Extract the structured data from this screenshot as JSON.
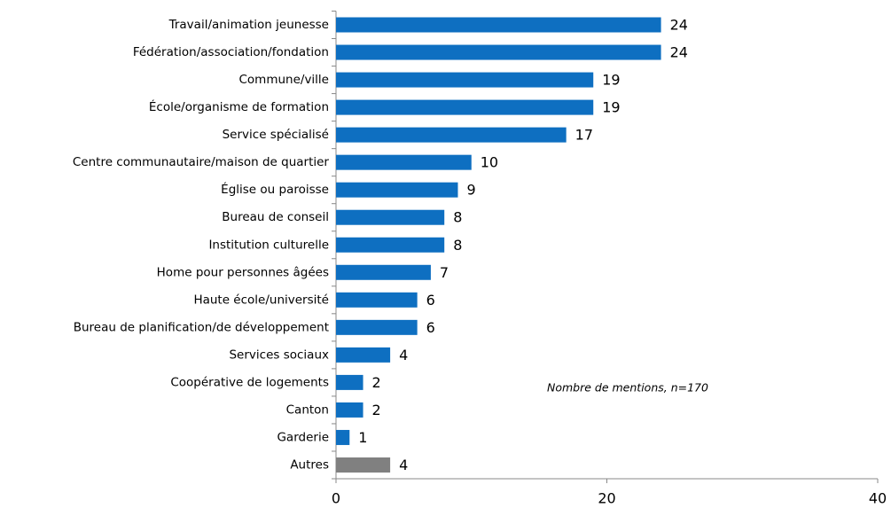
{
  "chart_data": {
    "type": "bar",
    "orientation": "horizontal",
    "categories": [
      "Travail/animation jeunesse",
      "Fédération/association/fondation",
      "Commune/ville",
      "École/organisme de formation",
      "Service spécialisé",
      "Centre communautaire/maison de quartier",
      "Église ou paroisse",
      "Bureau de conseil",
      "Institution culturelle",
      "Home pour personnes âgées",
      "Haute école/université",
      "Bureau de planification/de développement",
      "Services sociaux",
      "Coopérative de logements",
      "Canton",
      "Garderie",
      "Autres"
    ],
    "values": [
      24,
      24,
      19,
      19,
      17,
      10,
      9,
      8,
      8,
      7,
      6,
      6,
      4,
      2,
      2,
      1,
      4
    ],
    "colors": [
      "#0e6fc1",
      "#0e6fc1",
      "#0e6fc1",
      "#0e6fc1",
      "#0e6fc1",
      "#0e6fc1",
      "#0e6fc1",
      "#0e6fc1",
      "#0e6fc1",
      "#0e6fc1",
      "#0e6fc1",
      "#0e6fc1",
      "#0e6fc1",
      "#0e6fc1",
      "#0e6fc1",
      "#0e6fc1",
      "#808080"
    ],
    "annotation": "Nombre de mentions, n=170",
    "xlim": [
      0,
      40
    ],
    "xticks": [
      0,
      20,
      40
    ],
    "grid": false
  }
}
